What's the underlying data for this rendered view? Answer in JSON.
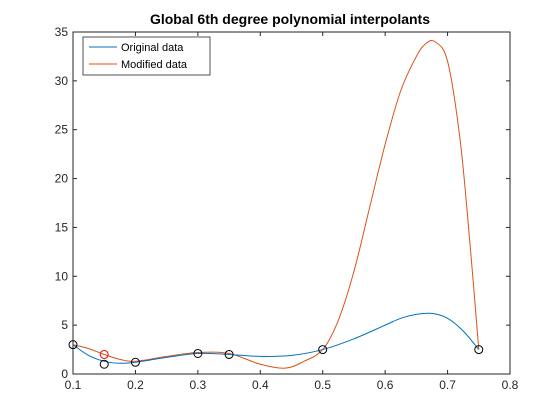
{
  "chart_data": {
    "type": "line",
    "title": "Global 6th degree polynomial interpolants",
    "xlabel": "",
    "ylabel": "",
    "xlim": [
      0.1,
      0.8
    ],
    "ylim": [
      0,
      35
    ],
    "xticks": [
      "0.1",
      "0.2",
      "0.3",
      "0.4",
      "0.5",
      "0.6",
      "0.7",
      "0.8"
    ],
    "yticks": [
      "0",
      "5",
      "10",
      "15",
      "20",
      "25",
      "30",
      "35"
    ],
    "grid": false,
    "legend_position": "top-left",
    "series": [
      {
        "name": "Original data",
        "color": "#0072BD",
        "data_points": {
          "x": [
            0.1,
            0.15,
            0.2,
            0.3,
            0.35,
            0.5,
            0.75
          ],
          "y": [
            3.0,
            1.0,
            1.2,
            2.1,
            2.0,
            2.5,
            2.5
          ]
        },
        "curve": {
          "x": [
            0.1,
            0.125,
            0.15,
            0.175,
            0.2,
            0.25,
            0.3,
            0.35,
            0.4,
            0.45,
            0.5,
            0.55,
            0.6,
            0.625,
            0.65,
            0.675,
            0.7,
            0.725,
            0.75
          ],
          "y": [
            3.0,
            1.9,
            1.3,
            1.1,
            1.2,
            1.7,
            2.1,
            2.0,
            1.8,
            1.9,
            2.5,
            3.6,
            5.0,
            5.7,
            6.1,
            6.2,
            5.7,
            4.4,
            2.5
          ]
        }
      },
      {
        "name": "Modified data",
        "color": "#D95319",
        "data_points": {
          "x": [
            0.1,
            0.15,
            0.2,
            0.3,
            0.35,
            0.5,
            0.75
          ],
          "y": [
            3.0,
            2.0,
            1.2,
            2.1,
            2.0,
            2.5,
            2.5
          ]
        },
        "curve": {
          "x": [
            0.1,
            0.125,
            0.15,
            0.175,
            0.2,
            0.25,
            0.3,
            0.35,
            0.4,
            0.44,
            0.47,
            0.5,
            0.525,
            0.55,
            0.575,
            0.6,
            0.625,
            0.65,
            0.665,
            0.68,
            0.7,
            0.72,
            0.735,
            0.75
          ],
          "y": [
            3.0,
            2.6,
            2.0,
            1.5,
            1.3,
            1.8,
            2.2,
            2.1,
            1.0,
            0.6,
            1.3,
            2.5,
            5.5,
            10.5,
            17.0,
            23.5,
            29.0,
            32.5,
            33.8,
            34.0,
            32.0,
            24.0,
            14.0,
            2.5
          ]
        }
      }
    ],
    "highlighted_point": {
      "x": 0.15,
      "y": 2.0,
      "color": "#FF0000"
    }
  }
}
